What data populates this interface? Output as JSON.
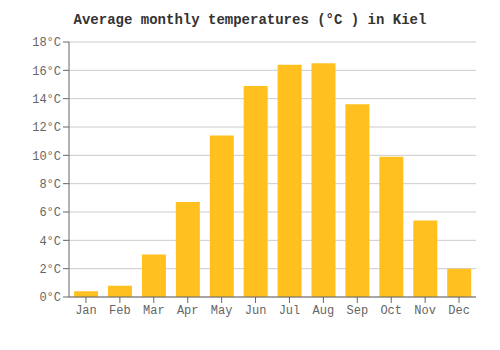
{
  "chart_data": {
    "type": "bar",
    "title": "Average monthly temperatures (°C ) in Kiel",
    "categories": [
      "Jan",
      "Feb",
      "Mar",
      "Apr",
      "May",
      "Jun",
      "Jul",
      "Aug",
      "Sep",
      "Oct",
      "Nov",
      "Dec"
    ],
    "values": [
      0.4,
      0.8,
      3.0,
      6.7,
      11.4,
      14.9,
      16.4,
      16.5,
      13.6,
      9.9,
      5.4,
      2.0
    ],
    "color": "#FFC020",
    "ylim": [
      0,
      18
    ],
    "yticks": [
      {
        "value": 0,
        "label": "0°C"
      },
      {
        "value": 2,
        "label": "2°C"
      },
      {
        "value": 4,
        "label": "4°C"
      },
      {
        "value": 6,
        "label": "6°C"
      },
      {
        "value": 8,
        "label": "8°C"
      },
      {
        "value": 10,
        "label": "10°C"
      },
      {
        "value": 12,
        "label": "12°C"
      },
      {
        "value": 14,
        "label": "14°C"
      },
      {
        "value": 16,
        "label": "16°C"
      },
      {
        "value": 18,
        "label": "18°C"
      }
    ],
    "grid": true
  }
}
